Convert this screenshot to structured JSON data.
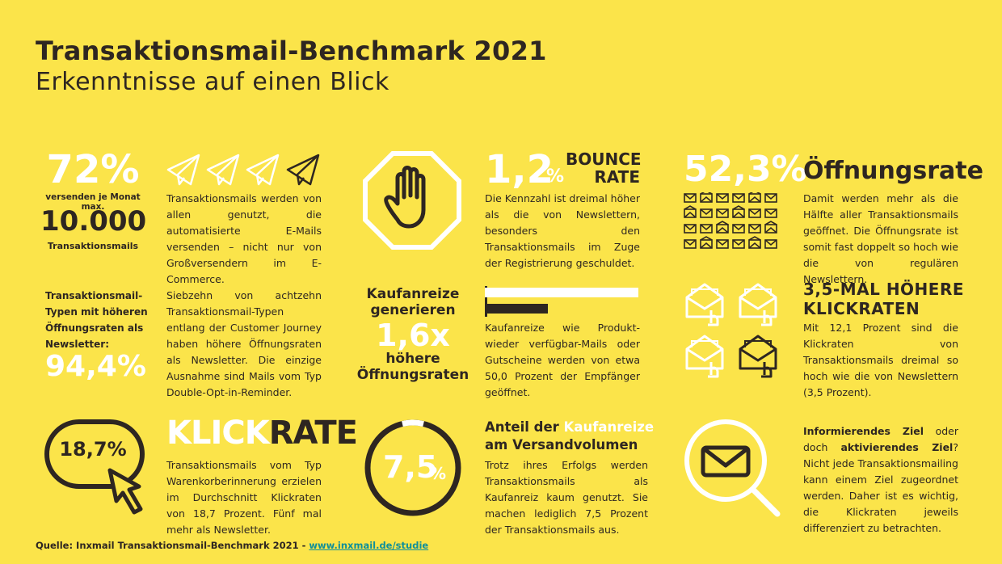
{
  "header": {
    "title": "Transaktionsmail-Benchmark 2021",
    "subtitle": "Erkenntnisse auf einen Blick"
  },
  "block1": {
    "percent": "72%",
    "line1": "versenden je Monat  max.",
    "number": "10.000",
    "line2": "Transaktionsmails",
    "text": "Transaktionsmails werden von allen genutzt, die automatisierte E-Mails versenden – nicht nur von Großversendern im E-Commerce."
  },
  "block2": {
    "value": "1,2",
    "unit": "%",
    "label1": "BOUNCE",
    "label2": "RATE",
    "text": "Die Kennzahl ist dreimal höher als die von Newslettern, besonders den Transaktionsmails im Zuge der Registrierung geschuldet."
  },
  "block3": {
    "value": "52,3%",
    "label": "Öffnungsrate",
    "text": "Damit werden mehr als die Hälfte aller Transaktionsmails geöffnet. Die Öffnungsrate ist somit fast doppelt so hoch wie die von regulären Newslettern."
  },
  "block4": {
    "heading": "Transaktionsmail-Typen mit höheren Öffnungsraten als Newsletter:",
    "value": "94,4%",
    "text": "Siebzehn von achtzehn Transaktionsmail-Typen entlang der Customer Journey haben höhere Öffnungsraten als Newsletter. Die einzige Ausnahme sind Mails vom Typ Double-Opt-in-Reminder."
  },
  "block5": {
    "line1": "Kaufanreize",
    "line2": "generieren",
    "value": "1,6x",
    "line3": "höhere",
    "line4": "Öffnungsraten",
    "text": "Kaufanreize wie Produkt-wieder verfügbar-Mails oder Gutscheine werden von etwa 50,0 Prozent der Empfänger geöffnet."
  },
  "block6": {
    "heading1": "3,5-MAL HÖHERE",
    "heading2": "KLICKRATEN",
    "text": "Mit 12,1 Prozent sind die Klickraten von Transaktionsmails dreimal so hoch wie die von Newslettern (3,5 Prozent)."
  },
  "block7": {
    "value": "18,7%",
    "label_a": "KLICK",
    "label_b": "RATE",
    "text": "Transaktionsmails vom Typ Warenkorberinnerung erzielen im Durchschnitt Klickraten von 18,7 Prozent. Fünf mal mehr als Newsletter."
  },
  "block8": {
    "value": "7,5",
    "unit": "%",
    "heading_a": "Anteil der ",
    "heading_b": "Kaufanreize",
    "heading_c": "am Versandvolumen",
    "text": "Trotz ihres Erfolgs werden Transaktionsmails als Kaufanreiz kaum genutzt. Sie machen lediglich 7,5 Prozent der Transaktionsmails aus."
  },
  "block9": {
    "bold1": "Informierendes Ziel",
    "t1": " oder doch ",
    "bold2": "aktivierendes Ziel",
    "t2": "? Nicht jede Transaktionsmailing kann einem Ziel zugeordnet werden. Daher ist es wichtig, die Klickraten jeweils differenziert zu betrachten."
  },
  "footer": {
    "source": "Quelle: Inxmail Transaktionsmail-Benchmark 2021  -  ",
    "link": "www.inxmail.de/studie"
  },
  "colors": {
    "background": "#fbe44a",
    "dark": "#2e2621",
    "white": "#ffffff",
    "link": "#0f8f9a"
  }
}
